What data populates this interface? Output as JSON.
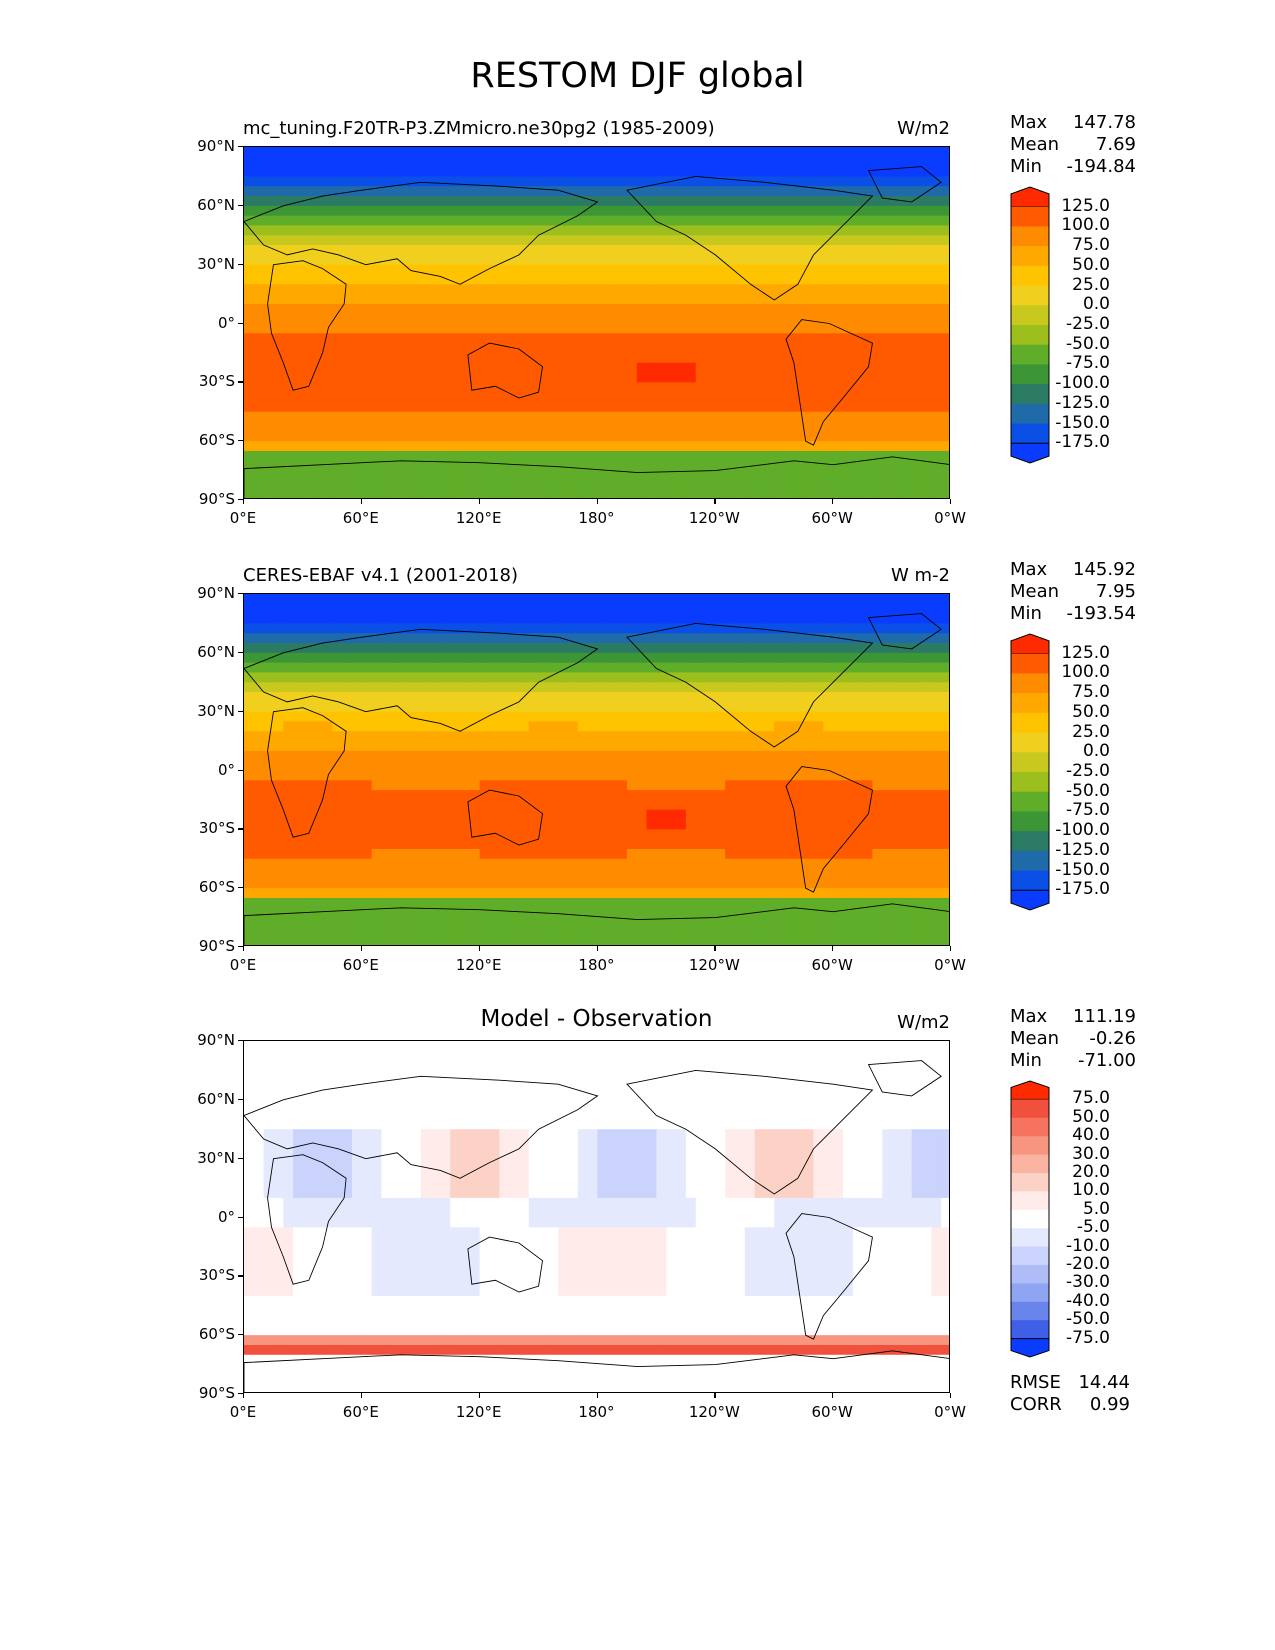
{
  "figure_title": "RESTOM DJF global",
  "panels": [
    {
      "title": "mc_tuning.F20TR-P3.ZMmicro.ne30pg2 (1985-2009)",
      "units": "W/m2",
      "stats": {
        "max_label": "Max",
        "max": "147.78",
        "mean_label": "Mean",
        "mean": "7.69",
        "min_label": "Min",
        "min": "-194.84"
      },
      "colorbar": {
        "labels": [
          "125.0",
          "100.0",
          "75.0",
          "50.0",
          "25.0",
          "0.0",
          "-25.0",
          "-50.0",
          "-75.0",
          "-100.0",
          "-125.0",
          "-150.0",
          "-175.0"
        ],
        "colors": [
          "#ff2a00",
          "#ff5a00",
          "#ff8c00",
          "#ffa800",
          "#ffc300",
          "#f0cf1e",
          "#c8c81e",
          "#9cbf1e",
          "#5fad28",
          "#3c9636",
          "#2a7a64",
          "#1f6aa8",
          "#0a50e6",
          "#0a3cff"
        ]
      }
    },
    {
      "title": "CERES-EBAF v4.1 (2001-2018)",
      "units": "W m-2",
      "stats": {
        "max_label": "Max",
        "max": "145.92",
        "mean_label": "Mean",
        "mean": "7.95",
        "min_label": "Min",
        "min": "-193.54"
      },
      "colorbar": {
        "labels": [
          "125.0",
          "100.0",
          "75.0",
          "50.0",
          "25.0",
          "0.0",
          "-25.0",
          "-50.0",
          "-75.0",
          "-100.0",
          "-125.0",
          "-150.0",
          "-175.0"
        ],
        "colors": [
          "#ff2a00",
          "#ff5a00",
          "#ff8c00",
          "#ffa800",
          "#ffc300",
          "#f0cf1e",
          "#c8c81e",
          "#9cbf1e",
          "#5fad28",
          "#3c9636",
          "#2a7a64",
          "#1f6aa8",
          "#0a50e6",
          "#0a3cff"
        ]
      }
    },
    {
      "title": "Model - Observation",
      "units": "W/m2",
      "stats": {
        "max_label": "Max",
        "max": "111.19",
        "mean_label": "Mean",
        "mean": "-0.26",
        "min_label": "Min",
        "min": "-71.00"
      },
      "extra": {
        "rmse_label": "RMSE",
        "rmse": "14.44",
        "corr_label": "CORR",
        "corr": "0.99"
      },
      "colorbar": {
        "labels": [
          "75.0",
          "50.0",
          "40.0",
          "30.0",
          "20.0",
          "10.0",
          "5.0",
          "-5.0",
          "-10.0",
          "-20.0",
          "-30.0",
          "-40.0",
          "-50.0",
          "-75.0"
        ],
        "colors": [
          "#ff2a00",
          "#f0503c",
          "#f5735f",
          "#f8957f",
          "#fbb4a2",
          "#fdd2c6",
          "#ffecea",
          "#ffffff",
          "#e4e9fd",
          "#c9d3fb",
          "#aebdf8",
          "#8fa4f3",
          "#6985ec",
          "#3f60e6",
          "#0a3cff"
        ]
      }
    }
  ],
  "axes": {
    "lat_labels": [
      "90°N",
      "60°N",
      "30°N",
      "0°",
      "30°S",
      "60°S",
      "90°S"
    ],
    "lon_labels": [
      "0°E",
      "60°E",
      "120°E",
      "180°",
      "120°W",
      "60°W",
      "0°W"
    ]
  }
}
